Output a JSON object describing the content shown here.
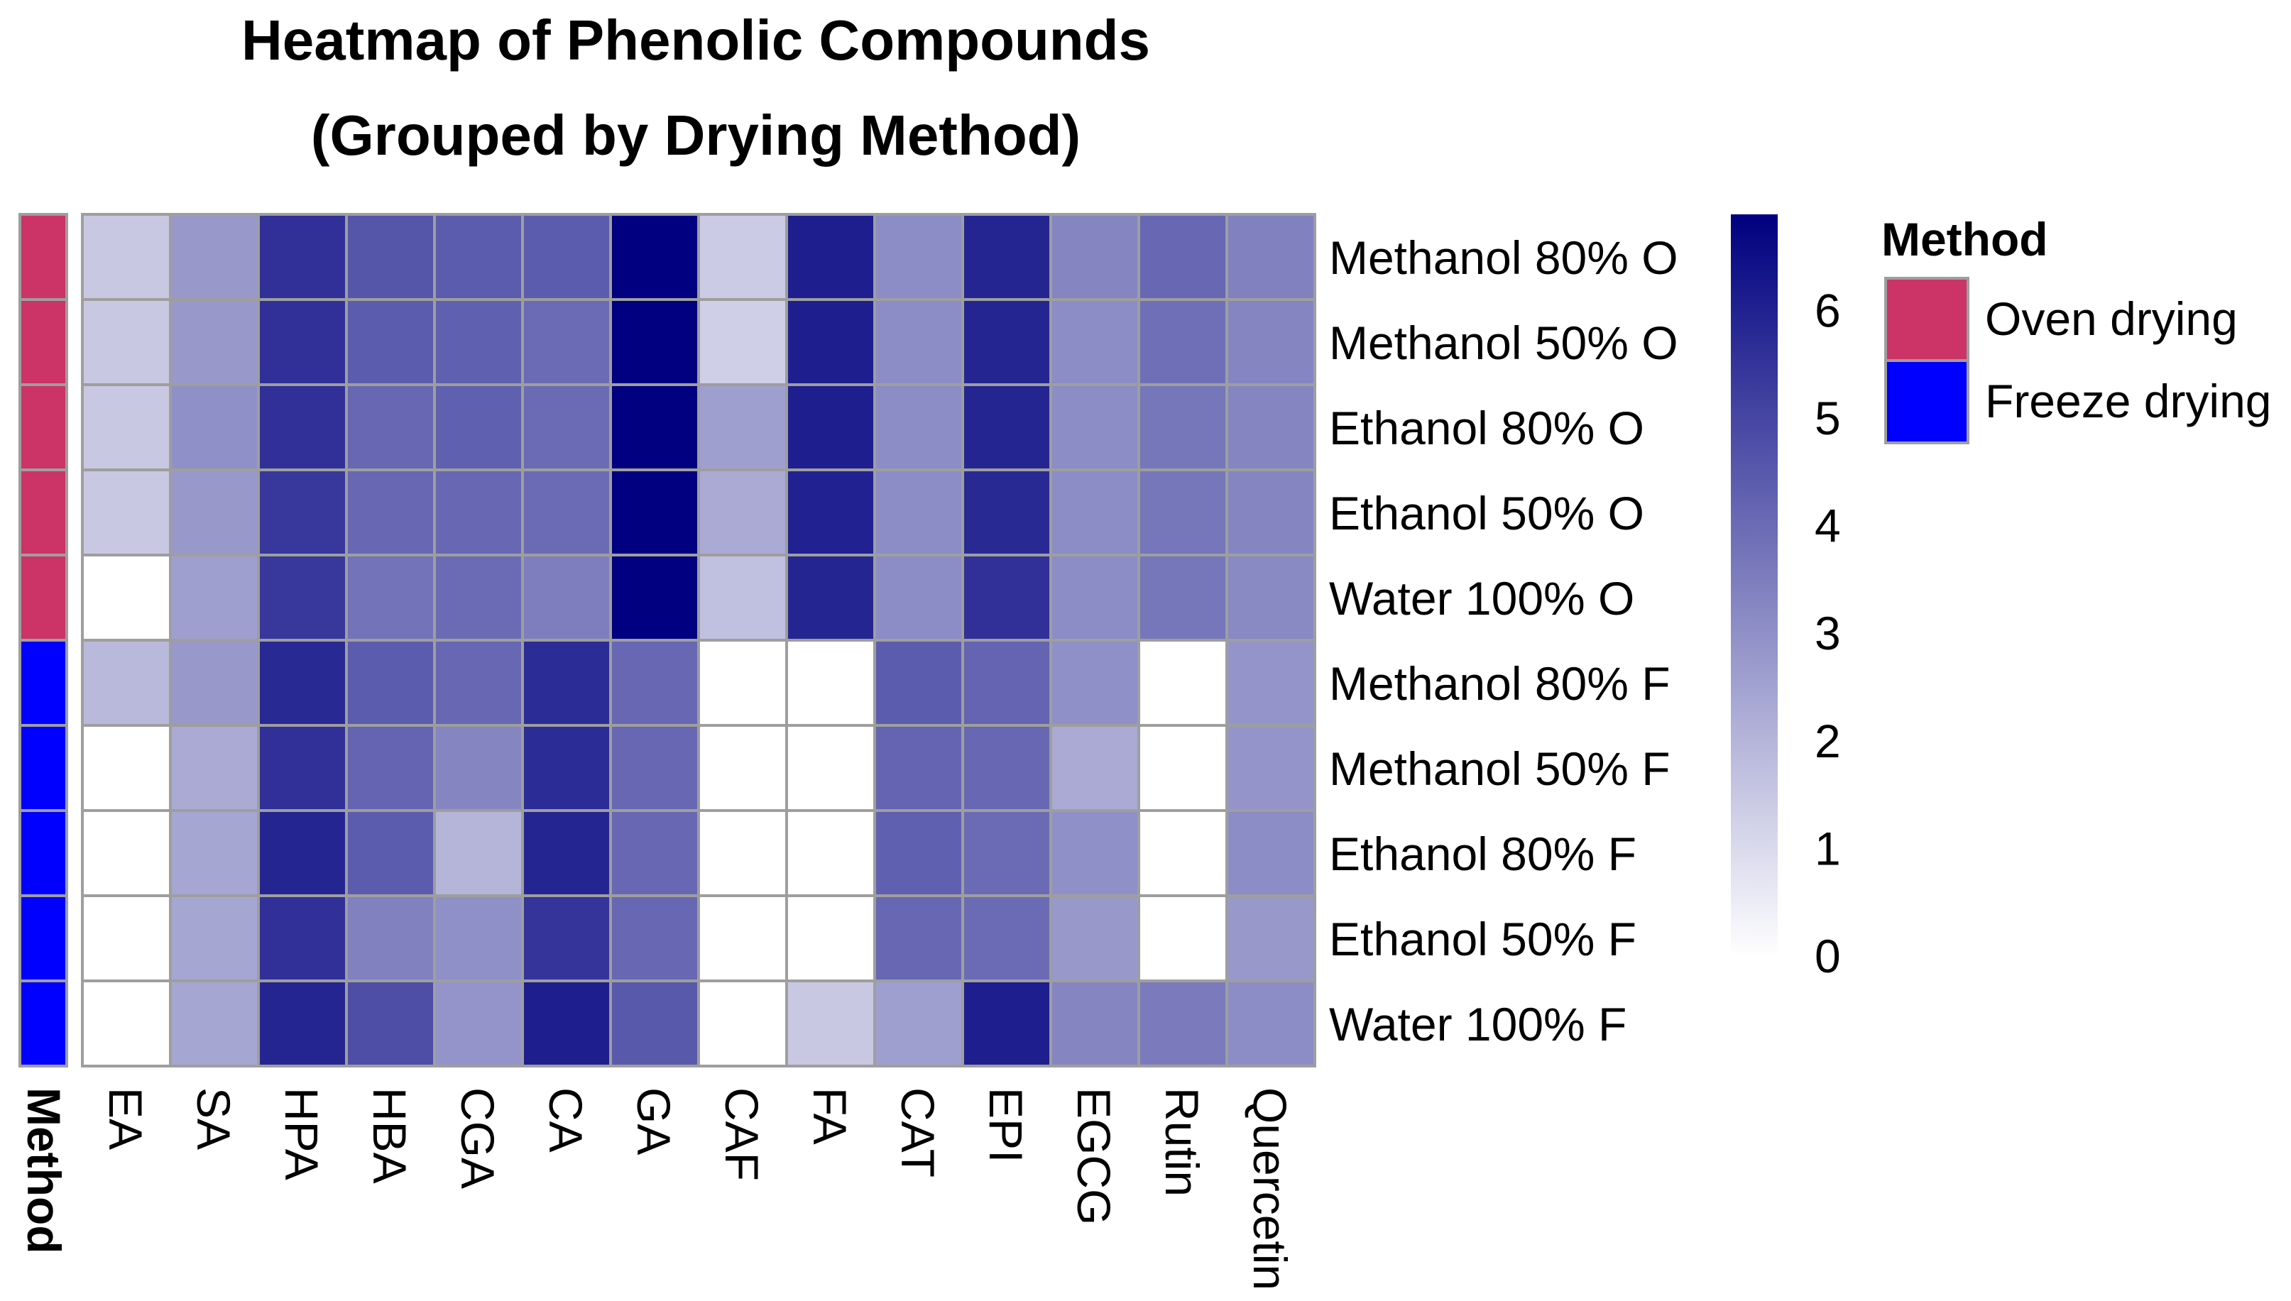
{
  "chart_data": {
    "type": "heatmap",
    "title_lines": [
      "Heatmap of Phenolic Compounds",
      "(Grouped by Drying Method)"
    ],
    "columns": [
      "EA",
      "SA",
      "HPA",
      "HBA",
      "CGA",
      "CA",
      "GA",
      "CAF",
      "FA",
      "CAT",
      "EPI",
      "EGCG",
      "Rutin",
      "Quercetin"
    ],
    "rows": [
      "Methanol 80% O",
      "Methanol 50% O",
      "Ethanol 80% O",
      "Ethanol 50% O",
      "Water 100% O",
      "Methanol 80% F",
      "Methanol 50% F",
      "Ethanol 80% F",
      "Ethanol 50% F",
      "Water 100% F"
    ],
    "row_groups": [
      "Oven drying",
      "Oven drying",
      "Oven drying",
      "Oven drying",
      "Oven drying",
      "Freeze drying",
      "Freeze drying",
      "Freeze drying",
      "Freeze drying",
      "Freeze drying"
    ],
    "values": [
      [
        1.5,
        2.8,
        5.6,
        4.6,
        4.4,
        4.4,
        6.9,
        1.4,
        6.1,
        3.1,
        5.9,
        3.3,
        4.1,
        3.4
      ],
      [
        1.5,
        2.8,
        5.6,
        4.4,
        4.3,
        4.0,
        6.9,
        1.3,
        6.1,
        3.1,
        5.9,
        3.1,
        3.9,
        3.3
      ],
      [
        1.5,
        3.0,
        5.6,
        4.1,
        4.3,
        4.0,
        6.9,
        2.6,
        6.1,
        3.1,
        5.9,
        3.1,
        3.7,
        3.3
      ],
      [
        1.5,
        2.8,
        5.4,
        4.1,
        4.1,
        4.0,
        6.9,
        2.3,
        6.0,
        3.1,
        5.8,
        3.1,
        3.7,
        3.3
      ],
      [
        0.0,
        2.6,
        5.4,
        3.8,
        4.0,
        3.5,
        6.9,
        1.7,
        5.9,
        3.1,
        5.6,
        3.1,
        3.7,
        3.2
      ],
      [
        1.9,
        2.8,
        5.8,
        4.4,
        4.1,
        5.7,
        4.1,
        0.0,
        0.0,
        4.4,
        4.2,
        3.0,
        0.0,
        2.9
      ],
      [
        0.0,
        2.3,
        5.6,
        4.2,
        3.3,
        5.7,
        4.1,
        0.0,
        0.0,
        4.2,
        4.1,
        2.3,
        0.0,
        2.9
      ],
      [
        0.0,
        2.4,
        5.9,
        4.4,
        2.0,
        5.9,
        4.1,
        0.0,
        0.0,
        4.3,
        4.0,
        3.0,
        0.0,
        3.1
      ],
      [
        0.0,
        2.4,
        5.6,
        3.4,
        3.0,
        5.5,
        4.1,
        0.0,
        0.0,
        4.1,
        4.0,
        2.8,
        0.0,
        2.8
      ],
      [
        0.0,
        2.4,
        5.9,
        4.8,
        2.9,
        6.1,
        4.5,
        0.0,
        1.5,
        2.6,
        6.1,
        3.3,
        3.6,
        3.1
      ]
    ],
    "scale_min": 0,
    "scale_max": 6.9,
    "colorbar_ticks": [
      6,
      5,
      4,
      3,
      2,
      1,
      0
    ],
    "color_low": "#ffffff",
    "color_high": "#000080",
    "annotation_column_label": "Method",
    "legend": {
      "title": "Method",
      "items": [
        {
          "label": "Oven drying",
          "color": "#cc3366"
        },
        {
          "label": "Freeze drying",
          "color": "#0000ff"
        }
      ]
    },
    "grid_color": "#9e9e9e"
  }
}
